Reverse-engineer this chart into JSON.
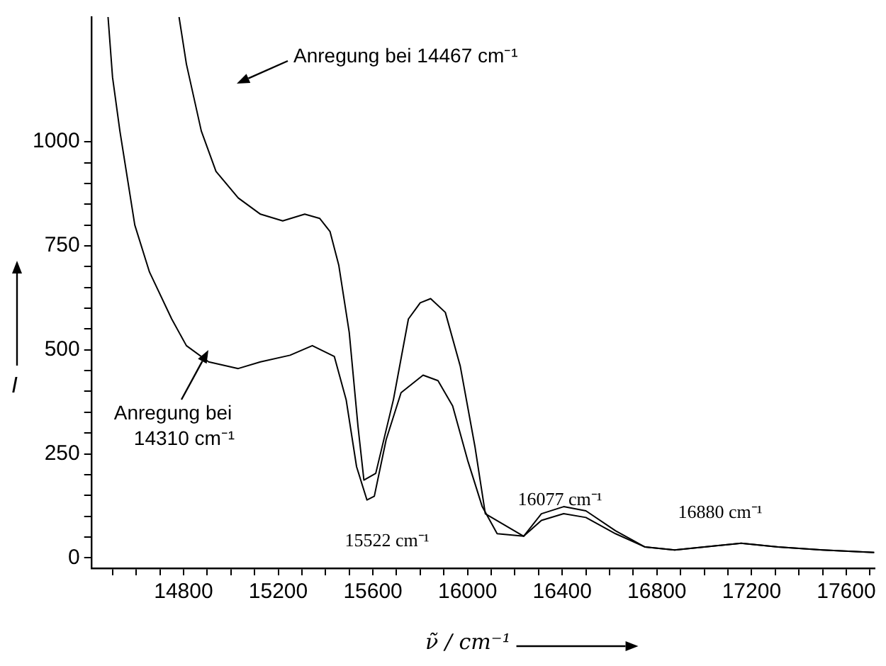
{
  "chart_data": {
    "type": "line",
    "xlabel": "ν̃ / cm⁻¹",
    "ylabel": "I",
    "xlim": [
      14410,
      17720
    ],
    "ylim": [
      -25,
      1300
    ],
    "xticks": [
      {
        "value": 14500,
        "label": null
      },
      {
        "value": 14600,
        "label": null
      },
      {
        "value": 14700,
        "label": null
      },
      14800,
      {
        "value": 14900,
        "label": null
      },
      {
        "value": 15000,
        "label": null
      },
      {
        "value": 15100,
        "label": null
      },
      15200,
      {
        "value": 15300,
        "label": null
      },
      {
        "value": 15400,
        "label": null
      },
      {
        "value": 15500,
        "label": null
      },
      15600,
      {
        "value": 15700,
        "label": null
      },
      {
        "value": 15800,
        "label": null
      },
      {
        "value": 15900,
        "label": null
      },
      16000,
      {
        "value": 16100,
        "label": null
      },
      {
        "value": 16200,
        "label": null
      },
      {
        "value": 16300,
        "label": null
      },
      16400,
      {
        "value": 16500,
        "label": null
      },
      {
        "value": 16600,
        "label": null
      },
      {
        "value": 16700,
        "label": null
      },
      16800,
      {
        "value": 16900,
        "label": null
      },
      {
        "value": 17000,
        "label": null
      },
      {
        "value": 17100,
        "label": null
      },
      17200,
      {
        "value": 17300,
        "label": null
      },
      {
        "value": 17400,
        "label": null
      },
      {
        "value": 17500,
        "label": null
      },
      17600,
      {
        "value": 17700,
        "label": null
      }
    ],
    "yticks": [
      0,
      {
        "value": 50,
        "label": null
      },
      {
        "value": 100,
        "label": null
      },
      {
        "value": 150,
        "label": null
      },
      {
        "value": 200,
        "label": null
      },
      250,
      {
        "value": 300,
        "label": null
      },
      {
        "value": 350,
        "label": null
      },
      {
        "value": 400,
        "label": null
      },
      {
        "value": 450,
        "label": null
      },
      500,
      {
        "value": 550,
        "label": null
      },
      {
        "value": 600,
        "label": null
      },
      {
        "value": 650,
        "label": null
      },
      {
        "value": 700,
        "label": null
      },
      750,
      {
        "value": 800,
        "label": null
      },
      {
        "value": 850,
        "label": null
      },
      {
        "value": 900,
        "label": null
      },
      {
        "value": 950,
        "label": null
      },
      1000
    ],
    "grid": false,
    "legend": false,
    "marker": "none",
    "line_style": "solid",
    "series": [
      {
        "color": "#000000",
        "x": [
          14781,
          14812,
          14875,
          14937,
          15031,
          15125,
          15219,
          15312,
          15375,
          15419,
          15456,
          15500,
          15537,
          15562,
          15612,
          15687,
          15750,
          15800,
          15844,
          15906,
          15969,
          16031,
          16075,
          16237,
          16312,
          16406,
          16500,
          16625,
          16750,
          16875,
          17000,
          17156,
          17312,
          17500,
          17718
        ],
        "values": [
          1300,
          1187,
          1026,
          929,
          865,
          826,
          810,
          826,
          816,
          784,
          703,
          542,
          316,
          187,
          203,
          381,
          574,
          613,
          623,
          590,
          461,
          268,
          106,
          52,
          106,
          123,
          113,
          65,
          26,
          19,
          26,
          35,
          26,
          19,
          13
        ]
      },
      {
        "color": "#000000",
        "x": [
          14481,
          14500,
          14531,
          14594,
          14656,
          14750,
          14812,
          14906,
          15031,
          15125,
          15250,
          15344,
          15437,
          15487,
          15531,
          15575,
          15606,
          15656,
          15719,
          15812,
          15875,
          15937,
          16000,
          16062,
          16125,
          16237,
          16312,
          16406,
          16500,
          16625,
          16750,
          16875,
          17000,
          17156,
          17312,
          17500,
          17718
        ],
        "values": [
          1300,
          1155,
          1026,
          800,
          687,
          574,
          510,
          471,
          455,
          471,
          487,
          510,
          484,
          380,
          219,
          139,
          148,
          284,
          397,
          439,
          426,
          365,
          235,
          123,
          58,
          52,
          90,
          106,
          97,
          58,
          26,
          19,
          26,
          35,
          26,
          19,
          13
        ]
      }
    ],
    "annotations": [
      "Anregung bei 14467 cm⁻¹",
      "Anregung bei\n14310 cm⁻¹",
      "15522 cm⁻¹",
      "16077 cm⁻¹",
      "16880 cm⁻¹"
    ]
  }
}
